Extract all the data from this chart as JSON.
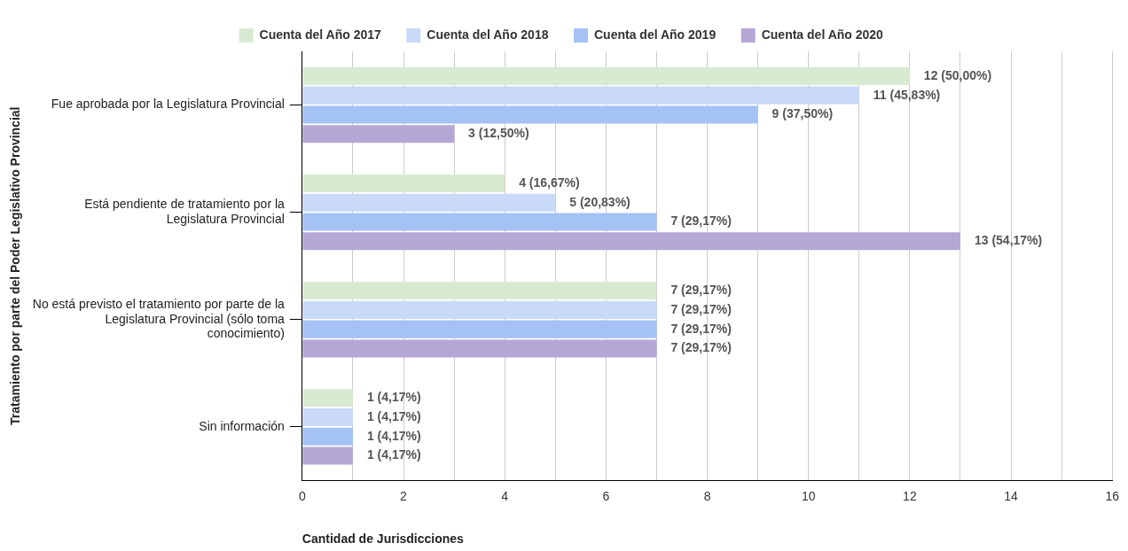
{
  "chart_data": {
    "type": "bar",
    "orientation": "horizontal",
    "ylabel": "Tratamiento por parte del Poder Legislativo Provincial",
    "xlabel": "Cantidad de Jurisdicciones",
    "categories": [
      "Fue aprobada por la Legislatura Provincial",
      "Está pendiente de tratamiento por la Legislatura Provincial",
      "No está previsto el tratamiento por parte de la Legislatura Provincial (sólo toma conocimiento)",
      "Sin información"
    ],
    "series": [
      {
        "name": "Cuenta del Año 2017",
        "color": "#d9ead3",
        "values": [
          12,
          4,
          7,
          1
        ],
        "value_labels": [
          "12 (50,00%)",
          "4 (16,67%)",
          "7 (29,17%)",
          "1 (4,17%)"
        ]
      },
      {
        "name": "Cuenta del Año 2018",
        "color": "#c9daf8",
        "values": [
          11,
          5,
          7,
          1
        ],
        "value_labels": [
          "11 (45,83%)",
          "5 (20,83%)",
          "7 (29,17%)",
          "1 (4,17%)"
        ]
      },
      {
        "name": "Cuenta del Año 2019",
        "color": "#a4c2f4",
        "values": [
          9,
          7,
          7,
          1
        ],
        "value_labels": [
          "9 (37,50%)",
          "7 (29,17%)",
          "7 (29,17%)",
          "1 (4,17%)"
        ]
      },
      {
        "name": "Cuenta del Año 2020",
        "color": "#b4a7d6",
        "values": [
          3,
          13,
          7,
          1
        ],
        "value_labels": [
          "3 (12,50%)",
          "13 (54,17%)",
          "7 (29,17%)",
          "1 (4,17%)"
        ]
      }
    ],
    "xlim": [
      0,
      16
    ],
    "xticks": [
      0,
      {
        "value": 1,
        "label": null
      },
      2,
      {
        "value": 3,
        "label": null
      },
      4,
      {
        "value": 5,
        "label": null
      },
      6,
      {
        "value": 7,
        "label": null
      },
      8,
      {
        "value": 9,
        "label": null
      },
      10,
      {
        "value": 11,
        "label": null
      },
      12,
      {
        "value": 13,
        "label": null
      },
      14,
      {
        "value": 15,
        "label": null
      },
      16
    ],
    "grid": "x",
    "legend": "top"
  }
}
